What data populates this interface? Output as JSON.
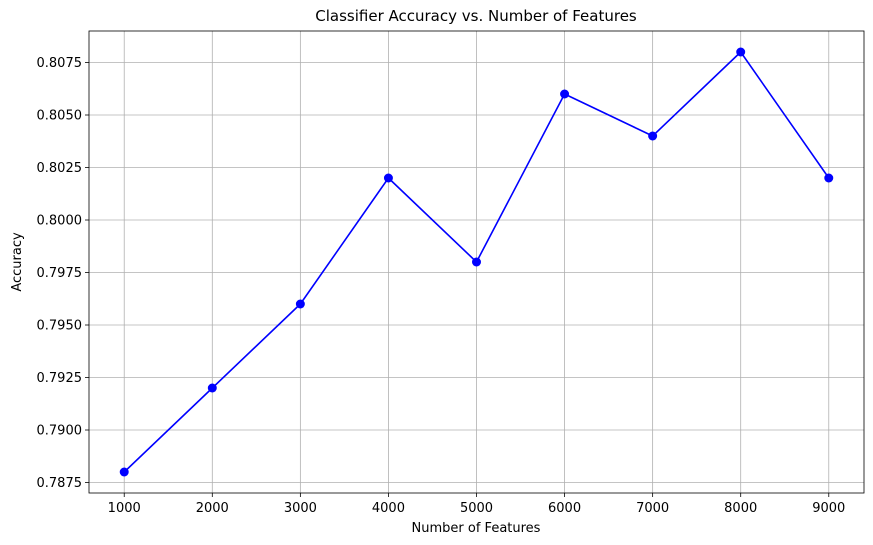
{
  "chart_data": {
    "type": "line",
    "title": "Classifier Accuracy vs. Number of Features",
    "xlabel": "Number of Features",
    "ylabel": "Accuracy",
    "x": [
      1000,
      2000,
      3000,
      4000,
      5000,
      6000,
      7000,
      8000,
      9000
    ],
    "series": [
      {
        "values": [
          0.788,
          0.792,
          0.796,
          0.802,
          0.798,
          0.806,
          0.804,
          0.808,
          0.802
        ],
        "color": "#0000ff",
        "marker": "circle"
      }
    ],
    "x_ticks": [
      1000,
      2000,
      3000,
      4000,
      5000,
      6000,
      7000,
      8000,
      9000
    ],
    "x_tick_labels": [
      "1000",
      "2000",
      "3000",
      "4000",
      "5000",
      "6000",
      "7000",
      "8000",
      "9000"
    ],
    "y_ticks": [
      0.7875,
      0.79,
      0.7925,
      0.795,
      0.7975,
      0.8,
      0.8025,
      0.805,
      0.8075
    ],
    "y_tick_labels": [
      "0.7875",
      "0.7900",
      "0.7925",
      "0.7950",
      "0.7975",
      "0.8000",
      "0.8025",
      "0.8050",
      "0.8075"
    ],
    "xlim": [
      600,
      9400
    ],
    "ylim": [
      0.787,
      0.809
    ],
    "grid": true,
    "grid_color": "#b0b0b0",
    "legend": false
  }
}
